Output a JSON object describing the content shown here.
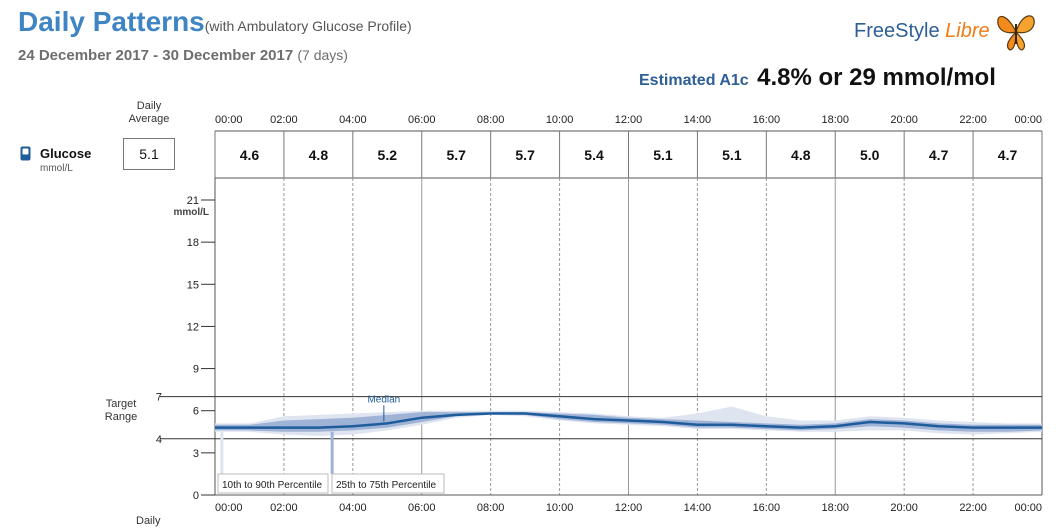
{
  "header": {
    "title": "Daily Patterns",
    "subtitle": "(with Ambulatory Glucose Profile)",
    "date_range": "24 December 2017 - 30 December 2017",
    "days": "(7 days)",
    "brand_part1": "FreeStyle",
    "brand_part2": "Libre",
    "a1c_label": "Estimated A1c",
    "a1c_value": "4.8% or 29 mmol/mol"
  },
  "colors": {
    "title": "#3f85c4",
    "median": "#1f5c9c",
    "band_25_75": "#9fb3d6",
    "band_10_90": "#dfe4f1",
    "brand_orange": "#f07c16"
  },
  "glucose": {
    "label": "Glucose",
    "unit": "mmol/L",
    "daily_average_label": "Daily Average",
    "daily_average_value": "5.1",
    "icon": "glucose-sensor-icon"
  },
  "labels": {
    "target_range": "Target Range",
    "median": "Median",
    "legend_10_90": "10th to 90th Percentile",
    "legend_25_75": "25th to 75th Percentile",
    "daily_bottom": "Daily"
  },
  "chart_data": {
    "type": "area",
    "x_tick_labels": [
      "00:00",
      "02:00",
      "04:00",
      "06:00",
      "08:00",
      "10:00",
      "12:00",
      "14:00",
      "16:00",
      "18:00",
      "20:00",
      "22:00",
      "00:00"
    ],
    "x_range_hours": [
      0,
      24
    ],
    "y_ticks": [
      0,
      3,
      6,
      9,
      12,
      15,
      18,
      21
    ],
    "y_extra_ticks": [
      4,
      7
    ],
    "ylabel": "mmol/L",
    "ylim": [
      0,
      22
    ],
    "target_range": [
      4,
      7
    ],
    "two_hour_averages": [
      "4.6",
      "4.8",
      "5.2",
      "5.7",
      "5.7",
      "5.4",
      "5.1",
      "5.1",
      "4.8",
      "5.0",
      "4.7",
      "4.7"
    ],
    "x_hours": [
      0,
      1,
      2,
      3,
      4,
      5,
      6,
      7,
      8,
      9,
      10,
      11,
      12,
      13,
      14,
      15,
      16,
      17,
      18,
      19,
      20,
      21,
      22,
      23,
      24
    ],
    "median": [
      4.8,
      4.8,
      4.8,
      4.8,
      4.9,
      5.1,
      5.5,
      5.7,
      5.8,
      5.8,
      5.6,
      5.4,
      5.3,
      5.2,
      5.0,
      5.0,
      4.9,
      4.8,
      4.9,
      5.2,
      5.1,
      4.9,
      4.8,
      4.8,
      4.8
    ],
    "p25": [
      4.6,
      4.6,
      4.5,
      4.5,
      4.6,
      4.8,
      5.2,
      5.6,
      5.8,
      5.7,
      5.4,
      5.2,
      5.1,
      5.0,
      4.8,
      4.8,
      4.7,
      4.6,
      4.7,
      4.9,
      4.8,
      4.6,
      4.5,
      4.5,
      4.6
    ],
    "p75": [
      5.0,
      5.0,
      5.3,
      5.4,
      5.5,
      5.7,
      5.9,
      5.9,
      5.9,
      5.9,
      5.8,
      5.7,
      5.5,
      5.4,
      5.3,
      5.2,
      5.1,
      5.0,
      5.1,
      5.4,
      5.3,
      5.1,
      5.0,
      5.0,
      5.0
    ],
    "p10": [
      4.5,
      4.5,
      4.3,
      4.2,
      4.3,
      4.6,
      5.0,
      5.5,
      5.7,
      5.6,
      5.3,
      5.1,
      5.0,
      4.9,
      4.7,
      4.7,
      4.6,
      4.5,
      4.5,
      4.6,
      4.6,
      4.4,
      4.3,
      4.4,
      4.5
    ],
    "p90": [
      5.1,
      5.1,
      5.6,
      5.7,
      5.8,
      5.9,
      6.0,
      6.0,
      6.0,
      6.0,
      5.9,
      5.8,
      5.6,
      5.5,
      5.8,
      6.3,
      5.6,
      5.3,
      5.3,
      5.6,
      5.5,
      5.3,
      5.2,
      5.1,
      5.1
    ]
  }
}
